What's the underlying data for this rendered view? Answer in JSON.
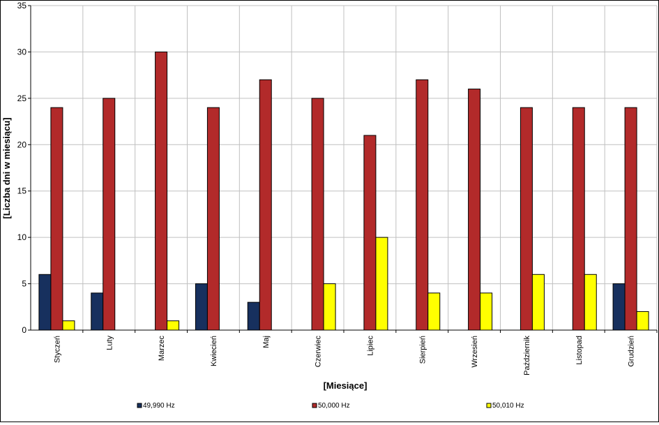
{
  "chart_data": {
    "type": "bar",
    "title": "",
    "xlabel": "[Miesiące]",
    "ylabel": "[Liczba dni w miesiącu]",
    "ylim": [
      0,
      35
    ],
    "yticks": [
      0,
      5,
      10,
      15,
      20,
      25,
      30,
      35
    ],
    "grid": true,
    "legend_position": "bottom",
    "categories": [
      "Styczeń",
      "Luty",
      "Marzec",
      "Kwiecień",
      "Maj",
      "Czerwiec",
      "Lipiec",
      "Sierpień",
      "Wrzesień",
      "Październik",
      "Listopad",
      "Grudzień"
    ],
    "series": [
      {
        "name": "49,990 Hz",
        "color": "#17305E",
        "values": [
          6,
          4,
          0,
          5,
          3,
          0,
          0,
          0,
          0,
          0,
          0,
          5
        ]
      },
      {
        "name": "50,000 Hz",
        "color": "#B22A2A",
        "values": [
          24,
          25,
          30,
          24,
          27,
          25,
          21,
          27,
          26,
          24,
          24,
          24
        ]
      },
      {
        "name": "50,010 Hz",
        "color": "#FFFF00",
        "values": [
          1,
          0,
          1,
          0,
          0,
          5,
          10,
          4,
          4,
          6,
          6,
          2
        ]
      }
    ]
  }
}
